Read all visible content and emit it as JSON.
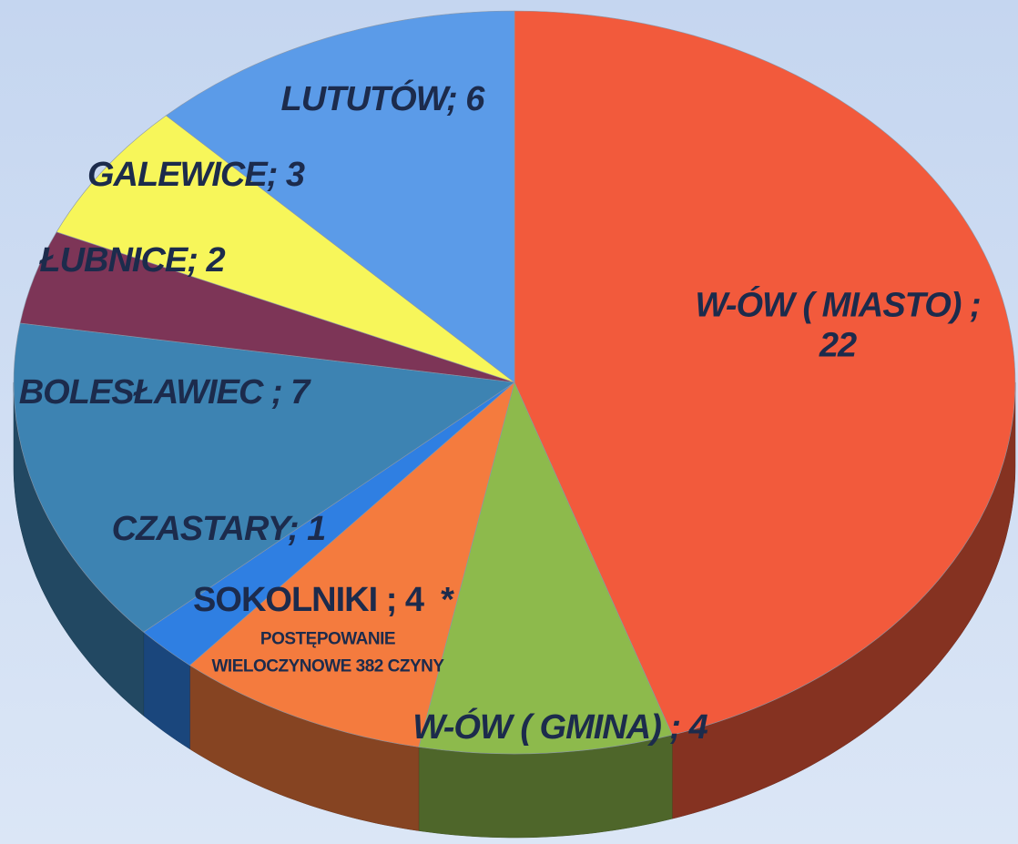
{
  "chart_data": {
    "type": "pie",
    "values": [
      22,
      4,
      4,
      1,
      7,
      2,
      3,
      6
    ],
    "value_labels": [
      "W-ÓW ( MIASTO) ; 22",
      "W-ÓW ( GMINA) ; 4",
      "SOKOLNIKI ; 4  *",
      "CZASTARY; 1",
      "BOLESŁAWIEC ; 7",
      "ŁUBNICE; 2",
      "GALEWICE; 3",
      "LUTUTÓW; 6"
    ],
    "colors": [
      "#f25a3c",
      "#8dba4c",
      "#f47b3e",
      "#2f7fe2",
      "#3d83b2",
      "#7d3557",
      "#f7f65a",
      "#5b9be8"
    ],
    "annotation": "POSTĘPOWANIE WIELOCZYNOWE 382 CZYNY",
    "three_d": true
  }
}
